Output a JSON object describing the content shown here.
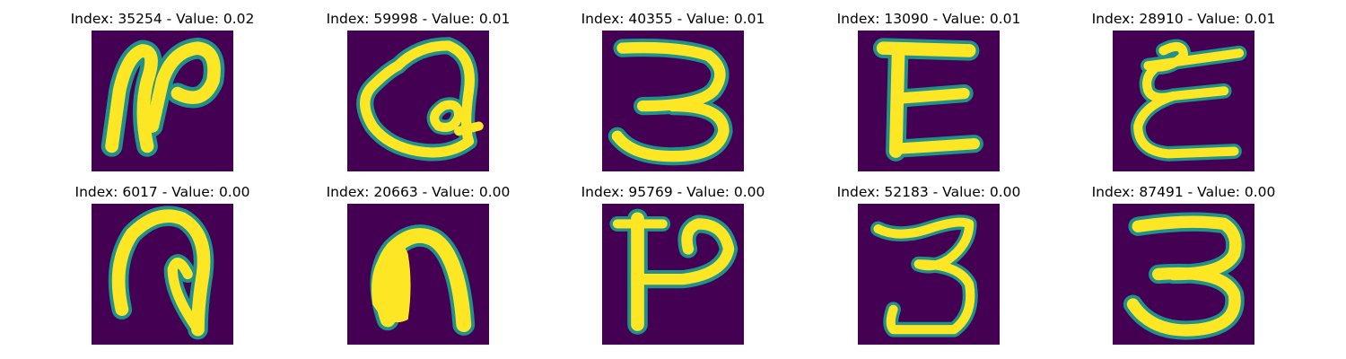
{
  "chart_data": {
    "type": "image-grid",
    "colors": {
      "background": "#440154",
      "mid": "#21918c",
      "edge": "#5ec962",
      "stroke": "#fde725"
    },
    "panels": [
      {
        "title": "Index: 35254 - Value: 0.02",
        "glyph": "handwritten-character-loop-hook-icon"
      },
      {
        "title": "Index: 59998 - Value: 0.01",
        "glyph": "handwritten-character-ring-icon"
      },
      {
        "title": "Index: 40355 - Value: 0.01",
        "glyph": "handwritten-character-three-icon"
      },
      {
        "title": "Index: 13090 - Value: 0.01",
        "glyph": "handwritten-character-e-icon"
      },
      {
        "title": "Index: 28910 - Value: 0.01",
        "glyph": "handwritten-character-curly-e-icon"
      },
      {
        "title": "Index: 6017 - Value: 0.00",
        "glyph": "handwritten-character-loop-down-icon"
      },
      {
        "title": "Index: 20663 - Value: 0.00",
        "glyph": "handwritten-character-arch-icon"
      },
      {
        "title": "Index: 95769 - Value: 0.00",
        "glyph": "handwritten-character-p-icon"
      },
      {
        "title": "Index: 52183 - Value: 0.00",
        "glyph": "handwritten-character-three-icon"
      },
      {
        "title": "Index: 87491 - Value: 0.00",
        "glyph": "handwritten-character-three-icon"
      }
    ]
  }
}
